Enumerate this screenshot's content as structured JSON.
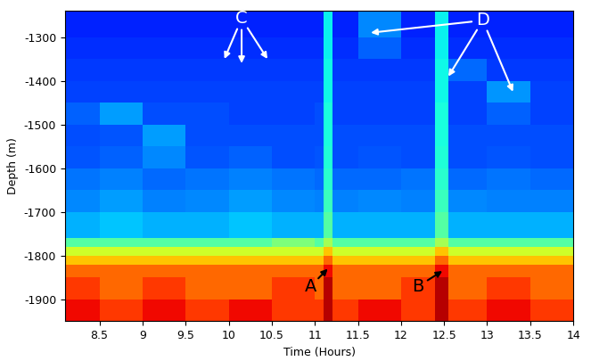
{
  "chart_data": {
    "type": "heatmap",
    "x_label": "Time (Hours)",
    "y_label": "Depth (m)",
    "xlim": [
      8.1,
      14
    ],
    "ylim": [
      -1950,
      -1240
    ],
    "xticks": [
      8.5,
      9,
      9.5,
      10,
      10.5,
      11,
      11.5,
      12,
      12.5,
      13,
      13.5,
      14
    ],
    "yticks": [
      -1900,
      -1800,
      -1700,
      -1600,
      -1500,
      -1400,
      -1300
    ],
    "x_edges": [
      8.1,
      8.5,
      9.0,
      9.5,
      10.0,
      10.5,
      11.0,
      11.1,
      11.2,
      11.5,
      12.0,
      12.4,
      12.55,
      13.0,
      13.5,
      14.0
    ],
    "y_edges": [
      -1950,
      -1900,
      -1850,
      -1820,
      -1800,
      -1780,
      -1760,
      -1700,
      -1650,
      -1600,
      -1550,
      -1500,
      -1450,
      -1400,
      -1350,
      -1300,
      -1240
    ],
    "color_range": [
      0,
      10
    ],
    "cells": [
      [
        9,
        8.5,
        9,
        8.5,
        9,
        8.5,
        8.5,
        9.5,
        8.5,
        9,
        8.5,
        9.5,
        8.5,
        9,
        8.5
      ],
      [
        8.5,
        8,
        8.5,
        8,
        8,
        8.5,
        8,
        9.5,
        8,
        8,
        8.5,
        9.5,
        8,
        8.5,
        8
      ],
      [
        8,
        8,
        8,
        8,
        8,
        8,
        8,
        9,
        8,
        8,
        8,
        9,
        8,
        8,
        8
      ],
      [
        7,
        7,
        7,
        7,
        7,
        7,
        7,
        8,
        7,
        7,
        7,
        8,
        7,
        7,
        7
      ],
      [
        6,
        6,
        6,
        6,
        6,
        6,
        6,
        7,
        6,
        6,
        6,
        7,
        6,
        6,
        6
      ],
      [
        4.5,
        4.5,
        4.5,
        4.5,
        4.5,
        5,
        4.5,
        5.5,
        4.5,
        4.5,
        4.5,
        5.5,
        4.5,
        4.5,
        4.5
      ],
      [
        3,
        3.2,
        3,
        3,
        3.2,
        3,
        3,
        4.5,
        3,
        3,
        3,
        4.5,
        3,
        3,
        3
      ],
      [
        2.6,
        2.8,
        2.5,
        2.6,
        2.8,
        2.6,
        2.5,
        4.2,
        2.5,
        2.6,
        2.5,
        4.2,
        2.6,
        2.5,
        2.5
      ],
      [
        2.4,
        2.5,
        2.3,
        2.4,
        2.5,
        2.4,
        2.3,
        4,
        2.3,
        2.3,
        2.4,
        4,
        2.3,
        2.4,
        2.3
      ],
      [
        2.1,
        2.2,
        2.6,
        2.1,
        2.2,
        2,
        2.1,
        3.9,
        2,
        2.1,
        2,
        3.9,
        2,
        2.1,
        2
      ],
      [
        2,
        2.1,
        2.8,
        2,
        2,
        2,
        2,
        3.8,
        2,
        2,
        2,
        3.8,
        2,
        2,
        2
      ],
      [
        2.2,
        2.8,
        2,
        2,
        1.9,
        1.9,
        2,
        3.8,
        1.9,
        1.9,
        1.9,
        3.8,
        1.9,
        2.2,
        1.9
      ],
      [
        1.9,
        1.9,
        1.9,
        1.9,
        1.9,
        1.9,
        1.9,
        3.7,
        1.9,
        1.9,
        1.9,
        3.7,
        1.9,
        2.7,
        1.9
      ],
      [
        1.8,
        1.8,
        1.8,
        1.8,
        1.8,
        1.8,
        1.8,
        3.7,
        1.8,
        1.8,
        1.8,
        3.7,
        2.3,
        1.8,
        1.8
      ],
      [
        1.7,
        1.7,
        1.7,
        1.7,
        1.7,
        1.7,
        1.7,
        3.6,
        1.7,
        2.2,
        1.7,
        3.6,
        1.7,
        1.7,
        1.7
      ],
      [
        1.6,
        1.6,
        1.6,
        1.6,
        1.6,
        1.6,
        1.6,
        3.6,
        1.6,
        2.6,
        1.6,
        3.6,
        1.6,
        1.6,
        1.6
      ]
    ],
    "annotations": [
      {
        "text": "A",
        "x": 10.95,
        "y": -1870,
        "color": "black",
        "points": [
          [
            11.15,
            -1830
          ]
        ]
      },
      {
        "text": "B",
        "x": 12.2,
        "y": -1870,
        "color": "black",
        "points": [
          [
            12.48,
            -1835
          ]
        ]
      },
      {
        "text": "C",
        "x": 10.15,
        "y": -1258,
        "color": "white",
        "points": [
          [
            9.95,
            -1350
          ],
          [
            10.15,
            -1360
          ],
          [
            10.45,
            -1350
          ]
        ]
      },
      {
        "text": "D",
        "x": 12.95,
        "y": -1262,
        "color": "white",
        "points": [
          [
            11.65,
            -1290
          ],
          [
            12.55,
            -1390
          ],
          [
            13.3,
            -1425
          ]
        ]
      }
    ]
  }
}
